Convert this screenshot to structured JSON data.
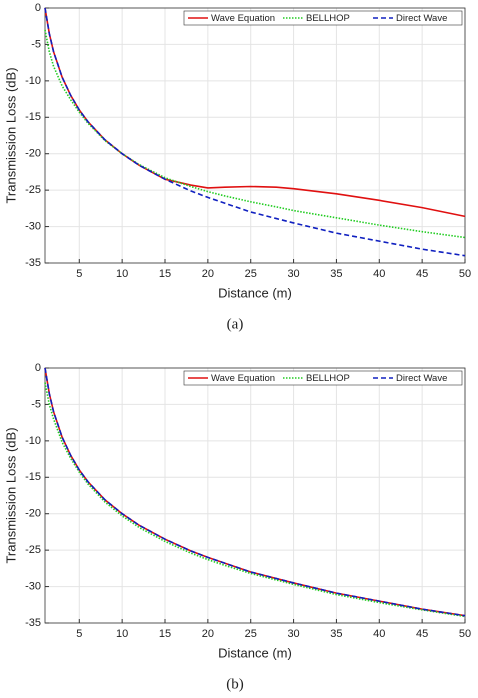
{
  "chart_data": [
    {
      "type": "line",
      "caption": "(a)",
      "x_label": "Distance (m)",
      "y_label": "Transmission Loss (dB)",
      "x": [
        1,
        1.5,
        2,
        3,
        4,
        5,
        6,
        8,
        10,
        12,
        15,
        18,
        20,
        22,
        25,
        28,
        30,
        35,
        40,
        45,
        50
      ],
      "series": [
        {
          "name": "Wave Equation",
          "color": "#e01010",
          "style": "solid",
          "values": [
            0,
            -3.5,
            -6,
            -9.5,
            -12,
            -14,
            -15.6,
            -18.1,
            -20,
            -21.6,
            -23.5,
            -24.3,
            -24.7,
            -24.6,
            -24.5,
            -24.6,
            -24.8,
            -25.5,
            -26.4,
            -27.4,
            -28.6
          ]
        },
        {
          "name": "BELLHOP",
          "color": "#22cc22",
          "style": "dotted",
          "values": [
            -3,
            -6,
            -8,
            -10.7,
            -12.6,
            -14.3,
            -15.8,
            -18.2,
            -20,
            -21.5,
            -23.3,
            -24.5,
            -25.2,
            -25.8,
            -26.6,
            -27.3,
            -27.8,
            -28.8,
            -29.8,
            -30.7,
            -31.5
          ]
        },
        {
          "name": "Direct Wave",
          "color": "#1020c0",
          "style": "dashed",
          "values": [
            0,
            -3.5,
            -6,
            -9.5,
            -12,
            -14,
            -15.6,
            -18.1,
            -20,
            -21.6,
            -23.5,
            -25.1,
            -26,
            -26.8,
            -28,
            -28.9,
            -29.5,
            -30.9,
            -32,
            -33.1,
            -34
          ]
        }
      ],
      "xlim": [
        1,
        50
      ],
      "xticks": [
        5,
        10,
        15,
        20,
        25,
        30,
        35,
        40,
        45,
        50
      ],
      "ylim": [
        -35,
        0
      ],
      "yticks": [
        0,
        -5,
        -10,
        -15,
        -20,
        -25,
        -30,
        -35
      ],
      "grid": true,
      "legend": "top-right"
    },
    {
      "type": "line",
      "caption": "(b)",
      "x_label": "Distance (m)",
      "y_label": "Transmission Loss (dB)",
      "x": [
        1,
        1.5,
        2,
        3,
        4,
        5,
        6,
        8,
        10,
        12,
        15,
        18,
        20,
        22,
        25,
        28,
        30,
        35,
        40,
        45,
        50
      ],
      "series": [
        {
          "name": "Wave Equation",
          "color": "#e01010",
          "style": "solid",
          "values": [
            0,
            -3.5,
            -6,
            -9.5,
            -12,
            -14,
            -15.6,
            -18.1,
            -20,
            -21.6,
            -23.5,
            -25.1,
            -26,
            -26.8,
            -28,
            -28.9,
            -29.5,
            -30.9,
            -32,
            -33.1,
            -34
          ]
        },
        {
          "name": "BELLHOP",
          "color": "#22cc22",
          "style": "dotted",
          "values": [
            -2,
            -5,
            -7,
            -10.2,
            -12.4,
            -14.3,
            -15.9,
            -18.4,
            -20.3,
            -21.9,
            -23.8,
            -25.4,
            -26.3,
            -27.1,
            -28.2,
            -29.1,
            -29.7,
            -31.1,
            -32.2,
            -33.2,
            -34.1
          ]
        },
        {
          "name": "Direct Wave",
          "color": "#1020c0",
          "style": "dashed",
          "values": [
            0,
            -3.5,
            -6,
            -9.5,
            -12,
            -14,
            -15.6,
            -18.1,
            -20,
            -21.6,
            -23.5,
            -25.1,
            -26,
            -26.8,
            -28,
            -28.9,
            -29.5,
            -30.9,
            -32,
            -33.1,
            -34
          ]
        }
      ],
      "xlim": [
        1,
        50
      ],
      "xticks": [
        5,
        10,
        15,
        20,
        25,
        30,
        35,
        40,
        45,
        50
      ],
      "ylim": [
        -35,
        0
      ],
      "yticks": [
        0,
        -5,
        -10,
        -15,
        -20,
        -25,
        -30,
        -35
      ],
      "grid": true,
      "legend": "top-right"
    }
  ]
}
